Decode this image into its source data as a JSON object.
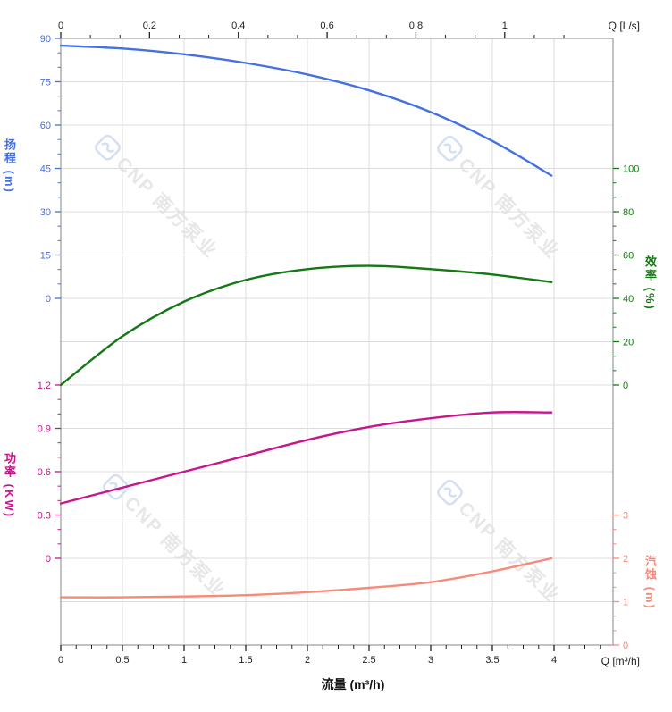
{
  "watermark": {
    "text": "CNP 南方泵业"
  },
  "labels": {
    "top_axis_unit": "Q [L/s]",
    "bottom_axis_unit": "Q [m³/h]",
    "bottom_axis_title": "流量 (m³/h)"
  },
  "layout_colors": {
    "background": "#ffffff",
    "grid": "#dcdcdc",
    "frame": "#9a9a9a",
    "xtick_text": "#222222",
    "watermark_text": "#e7e7e7",
    "watermark_logo": "#d3e0f1"
  },
  "chart_data": {
    "type": "line",
    "title": "",
    "grid": true,
    "x": [
      0,
      0.5,
      1,
      1.5,
      2,
      2.5,
      3,
      3.5,
      3.98
    ],
    "x_axis_bottom": {
      "label": "流量 (m³/h)",
      "end_label": "Q [m³/h]",
      "ticks": [
        0,
        0.5,
        1,
        1.5,
        2,
        2.5,
        3,
        3.5,
        4
      ],
      "axis_max": 4.48,
      "minor_per_gap": 3,
      "color": "#222222"
    },
    "x_axis_top": {
      "end_label": "Q [L/s]",
      "ticks": [
        0,
        0.2,
        0.4,
        0.6,
        0.8,
        1
      ],
      "m3h_per_Ls": 3.6,
      "minor_per_gap": 2,
      "color": "#222222"
    },
    "y_axes": [
      {
        "id": "head",
        "title": "扬程 (m)",
        "side": "left",
        "color": "#4470e4",
        "ticks": [
          90,
          75,
          60,
          45,
          30,
          15,
          0
        ],
        "row_start": 0,
        "minor_per_gap": 2
      },
      {
        "id": "efficiency",
        "title": "效率 (%)",
        "side": "right",
        "color": "#147814",
        "ticks": [
          100,
          80,
          60,
          40,
          20,
          0
        ],
        "row_start": 3,
        "minor_per_gap": 2
      },
      {
        "id": "power",
        "title": "功率 (KW)",
        "side": "left",
        "color": "#c9148c",
        "ticks": [
          1.2,
          0.9,
          0.6,
          0.3,
          0
        ],
        "row_start": 8,
        "minor_per_gap": 2
      },
      {
        "id": "npsh",
        "title": "汽蚀 (m)",
        "side": "right",
        "color": "#f78a78",
        "ticks": [
          3,
          2,
          1,
          0
        ],
        "row_start": 11,
        "minor_per_gap": 2
      }
    ],
    "series": [
      {
        "name": "扬程",
        "axis": "head",
        "color": "#4470e4",
        "values": [
          87.5,
          86.5,
          84.5,
          81.5,
          77.5,
          72,
          64.5,
          54.5,
          42.5
        ]
      },
      {
        "name": "效率",
        "axis": "efficiency",
        "color": "#147814",
        "values": [
          0,
          22.5,
          38.5,
          48.5,
          53.5,
          55,
          53.5,
          51,
          47.5
        ]
      },
      {
        "name": "功率",
        "axis": "power",
        "color": "#c9148c",
        "values": [
          0.38,
          0.49,
          0.6,
          0.71,
          0.82,
          0.91,
          0.97,
          1.01,
          1.01
        ]
      },
      {
        "name": "汽蚀",
        "axis": "npsh",
        "color": "#f78a78",
        "values": [
          1.1,
          1.1,
          1.12,
          1.15,
          1.22,
          1.32,
          1.45,
          1.7,
          2.0
        ]
      }
    ]
  }
}
